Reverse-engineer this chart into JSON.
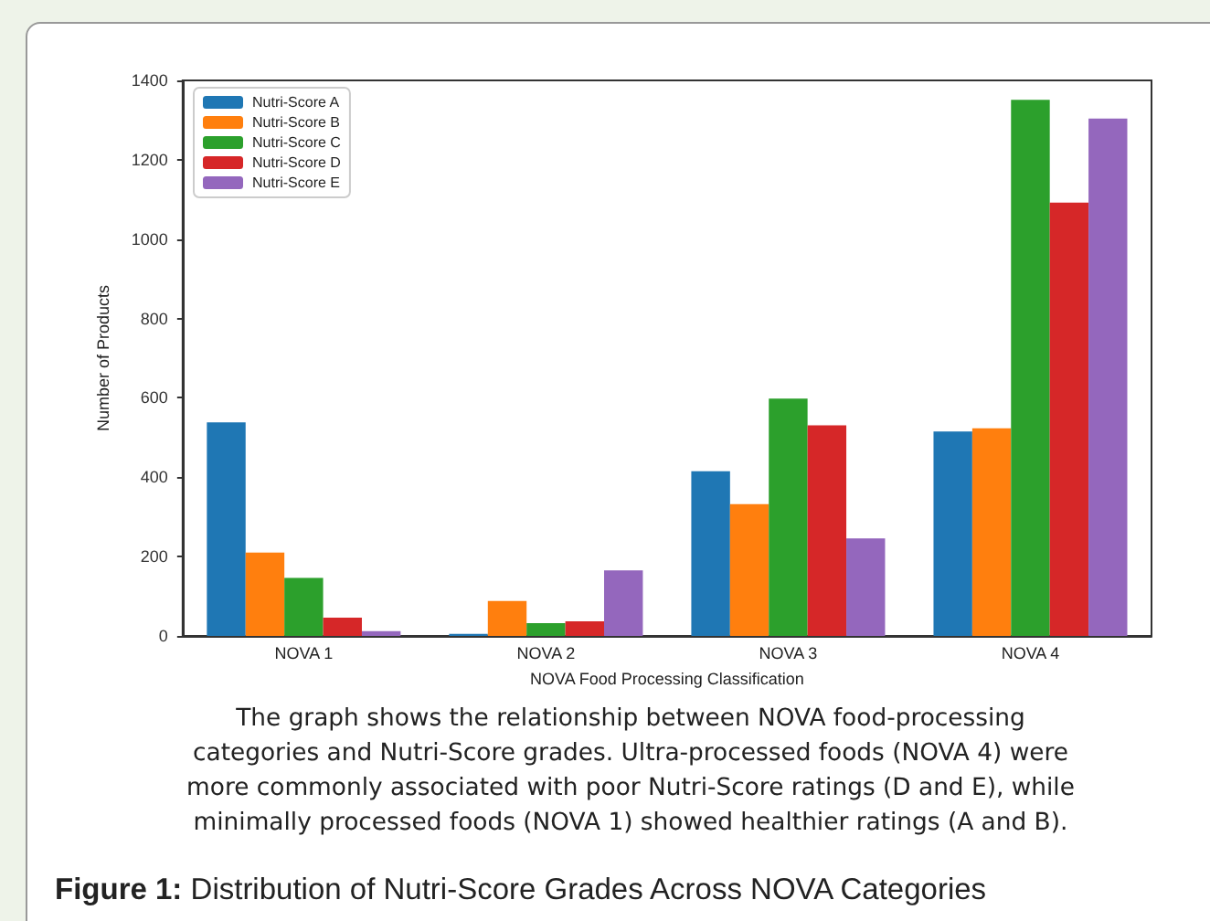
{
  "chart_data": {
    "type": "bar",
    "xlabel": "NOVA Food Processing Classification",
    "ylabel": "Number of Products",
    "categories": [
      "NOVA 1",
      "NOVA 2",
      "NOVA 3",
      "NOVA 4"
    ],
    "series": [
      {
        "name": "Nutri-Score A",
        "color": "#1f77b4",
        "values": [
          538,
          5,
          415,
          515
        ]
      },
      {
        "name": "Nutri-Score B",
        "color": "#ff7f0e",
        "values": [
          210,
          88,
          332,
          523
        ]
      },
      {
        "name": "Nutri-Score C",
        "color": "#2ca02c",
        "values": [
          146,
          32,
          598,
          1351
        ]
      },
      {
        "name": "Nutri-Score D",
        "color": "#d62728",
        "values": [
          46,
          37,
          531,
          1092
        ]
      },
      {
        "name": "Nutri-Score E",
        "color": "#9467bd",
        "values": [
          12,
          165,
          246,
          1304
        ]
      }
    ],
    "ylim": [
      0,
      1400
    ],
    "yticks": [
      0,
      200,
      400,
      600,
      800,
      1000,
      1200,
      1400
    ],
    "grid": false,
    "legend": "top left",
    "annotations": [
      "The graph shows the relationship between NOVA food-processing categories and Nutri-Score grades. Ultra-processed foods (NOVA 4) were more commonly associated with poor Nutri-Score ratings (D and E), while minimally processed foods (NOVA 1) showed healthier ratings (A and B).",
      "Figure 1: Distribution of Nutri-Score Grades Across NOVA Categories"
    ]
  }
}
